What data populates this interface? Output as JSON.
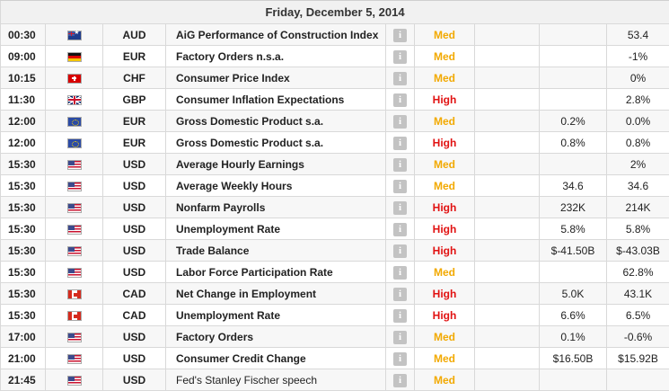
{
  "header": {
    "date": "Friday, December 5, 2014"
  },
  "info_glyph": "i",
  "rows": [
    {
      "time": "00:30",
      "flag": "au",
      "currency": "AUD",
      "event": "AiG Performance of Construction Index",
      "importance": "Med",
      "forecast": "",
      "previous": "53.4"
    },
    {
      "time": "09:00",
      "flag": "de",
      "currency": "EUR",
      "event": "Factory Orders n.s.a.",
      "importance": "Med",
      "forecast": "",
      "previous": "-1%"
    },
    {
      "time": "10:15",
      "flag": "ch",
      "currency": "CHF",
      "event": "Consumer Price Index",
      "importance": "Med",
      "forecast": "",
      "previous": "0%"
    },
    {
      "time": "11:30",
      "flag": "gb",
      "currency": "GBP",
      "event": "Consumer Inflation Expectations",
      "importance": "High",
      "forecast": "",
      "previous": "2.8%"
    },
    {
      "time": "12:00",
      "flag": "eu",
      "currency": "EUR",
      "event": "Gross Domestic Product s.a.",
      "importance": "Med",
      "forecast": "0.2%",
      "previous": "0.0%"
    },
    {
      "time": "12:00",
      "flag": "eu",
      "currency": "EUR",
      "event": "Gross Domestic Product s.a.",
      "importance": "High",
      "forecast": "0.8%",
      "previous": "0.8%"
    },
    {
      "time": "15:30",
      "flag": "us",
      "currency": "USD",
      "event": "Average Hourly Earnings",
      "importance": "Med",
      "forecast": "",
      "previous": "2%"
    },
    {
      "time": "15:30",
      "flag": "us",
      "currency": "USD",
      "event": "Average Weekly Hours",
      "importance": "Med",
      "forecast": "34.6",
      "previous": "34.6"
    },
    {
      "time": "15:30",
      "flag": "us",
      "currency": "USD",
      "event": "Nonfarm Payrolls",
      "importance": "High",
      "forecast": "232K",
      "previous": "214K"
    },
    {
      "time": "15:30",
      "flag": "us",
      "currency": "USD",
      "event": "Unemployment Rate",
      "importance": "High",
      "forecast": "5.8%",
      "previous": "5.8%"
    },
    {
      "time": "15:30",
      "flag": "us",
      "currency": "USD",
      "event": "Trade Balance",
      "importance": "High",
      "forecast": "$-41.50B",
      "previous": "$-43.03B"
    },
    {
      "time": "15:30",
      "flag": "us",
      "currency": "USD",
      "event": "Labor Force Participation Rate",
      "importance": "Med",
      "forecast": "",
      "previous": "62.8%"
    },
    {
      "time": "15:30",
      "flag": "ca",
      "currency": "CAD",
      "event": "Net Change in Employment",
      "importance": "High",
      "forecast": "5.0K",
      "previous": "43.1K"
    },
    {
      "time": "15:30",
      "flag": "ca",
      "currency": "CAD",
      "event": "Unemployment Rate",
      "importance": "High",
      "forecast": "6.6%",
      "previous": "6.5%"
    },
    {
      "time": "17:00",
      "flag": "us",
      "currency": "USD",
      "event": "Factory Orders",
      "importance": "Med",
      "forecast": "0.1%",
      "previous": "-0.6%"
    },
    {
      "time": "21:00",
      "flag": "us",
      "currency": "USD",
      "event": "Consumer Credit Change",
      "importance": "Med",
      "forecast": "$16.50B",
      "previous": "$15.92B"
    },
    {
      "time": "21:45",
      "flag": "us",
      "currency": "USD",
      "event": "Fed's Stanley Fischer speech",
      "importance": "Med",
      "forecast": "",
      "previous": "",
      "plain": true
    }
  ],
  "colors": {
    "med": "#f2a900",
    "high": "#e11212",
    "info_box": "#c3c3c3"
  }
}
